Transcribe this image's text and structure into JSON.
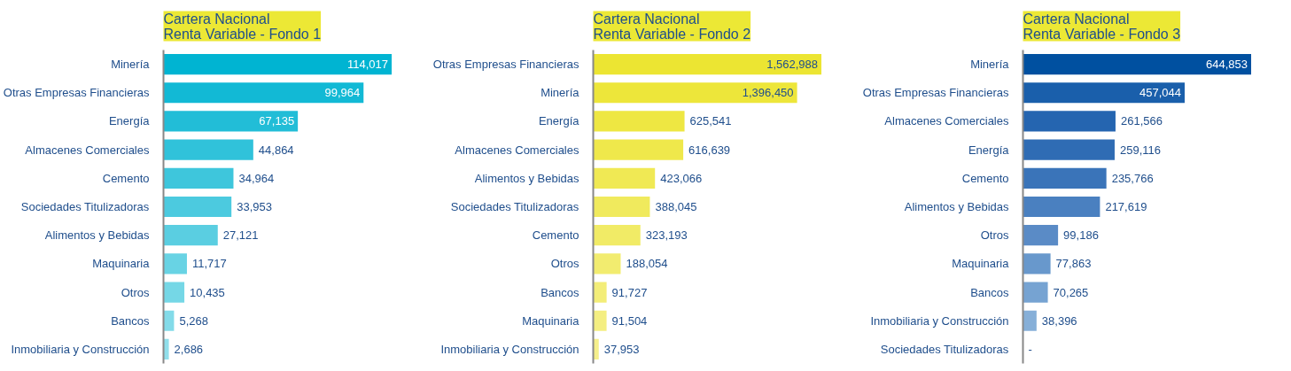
{
  "chart_data": [
    {
      "type": "bar",
      "orientation": "horizontal",
      "title": "Cartera Nacional\nRenta Variable - Fondo 1",
      "categories": [
        "Minería",
        "Otras Empresas Financieras",
        "Energía",
        "Almacenes Comerciales",
        "Cemento",
        "Sociedades Titulizadoras",
        "Alimentos y Bebidas",
        "Maquinaria",
        "Otros",
        "Bancos",
        "Inmobiliaria y Construcción"
      ],
      "values": [
        114017,
        99964,
        67135,
        44864,
        34964,
        33953,
        27121,
        11717,
        10435,
        5268,
        2686
      ],
      "value_labels": [
        "114,017",
        "99,964",
        "67,135",
        "44,864",
        "34,964",
        "33,953",
        "27,121",
        "11,717",
        "10,435",
        "5,268",
        "2,686"
      ],
      "colors": [
        "#00b4d2",
        "#12b9d5",
        "#22bdd7",
        "#30c2da",
        "#3ec6dc",
        "#4ccadf",
        "#5acee1",
        "#68d3e4",
        "#75d7e6",
        "#83dbe9",
        "#90dfeb"
      ],
      "grid": false
    },
    {
      "type": "bar",
      "orientation": "horizontal",
      "title": "Cartera Nacional\nRenta Variable - Fondo 2",
      "categories": [
        "Otras Empresas Financieras",
        "Minería",
        "Energía",
        "Almacenes Comerciales",
        "Alimentos y Bebidas",
        "Sociedades Titulizadoras",
        "Cemento",
        "Otros",
        "Bancos",
        "Maquinaria",
        "Inmobiliaria y Construcción"
      ],
      "values": [
        1562988,
        1396450,
        625541,
        616639,
        423066,
        388045,
        323193,
        188054,
        91727,
        91504,
        37953
      ],
      "value_labels": [
        "1,562,988",
        "1,396,450",
        "625,541",
        "616,639",
        "423,066",
        "388,045",
        "323,193",
        "188,054",
        "91,727",
        "91,504",
        "37,953"
      ],
      "colors": [
        "#ece532",
        "#ede63a",
        "#eee742",
        "#efe84b",
        "#f0e954",
        "#f0ea5d",
        "#f1eb66",
        "#f2ec6f",
        "#f3ed78",
        "#f4ee81",
        "#f5ef8a"
      ],
      "grid": false
    },
    {
      "type": "bar",
      "orientation": "horizontal",
      "title": "Cartera Nacional\nRenta Variable - Fondo 3",
      "categories": [
        "Minería",
        "Otras Empresas Financieras",
        "Almacenes Comerciales",
        "Energía",
        "Cemento",
        "Alimentos y Bebidas",
        "Otros",
        "Maquinaria",
        "Bancos",
        "Inmobiliaria y Construcción",
        "Sociedades Titulizadoras"
      ],
      "values": [
        644853,
        457044,
        261566,
        259116,
        235766,
        217619,
        99186,
        77863,
        70265,
        38396,
        null
      ],
      "value_labels": [
        "644,853",
        "457,044",
        "261,566",
        "259,116",
        "235,766",
        "217,619",
        "99,186",
        "77,863",
        "70,265",
        "38,396",
        "-"
      ],
      "colors": [
        "#0050a0",
        "#1a5fab",
        "#2565b0",
        "#2f6cb4",
        "#3a74b9",
        "#4a80c0",
        "#5a8bc6",
        "#6898cc",
        "#76a3d2",
        "#86afd8",
        "#96bade"
      ],
      "grid": false
    }
  ]
}
